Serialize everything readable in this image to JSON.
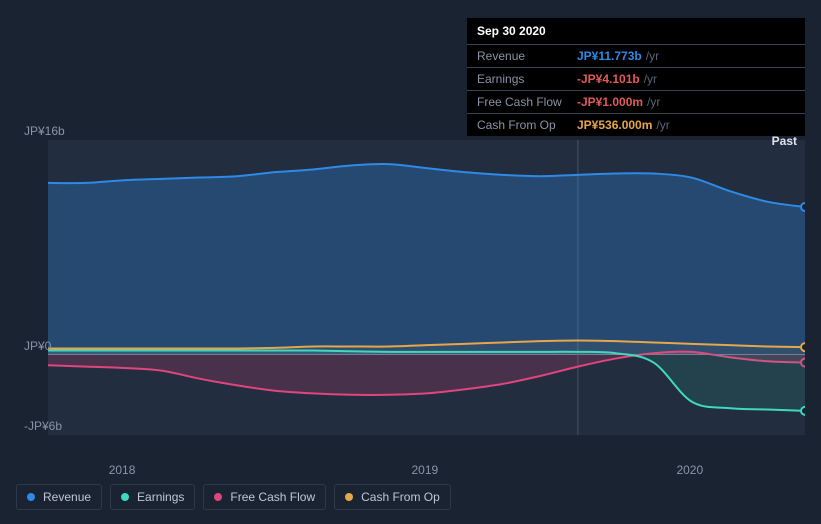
{
  "chart": {
    "type": "area",
    "background_color": "#1a2332",
    "plot_background": "#222d3f",
    "grid_color": "#3a4454",
    "past_label": "Past",
    "y_axis": {
      "ticks": [
        {
          "label": "JP¥16b",
          "value": 16
        },
        {
          "label": "JP¥0",
          "value": 0
        },
        {
          "label": "-JP¥6b",
          "value": -6
        }
      ],
      "min": -6,
      "max": 16,
      "label_color": "#8a94a6",
      "label_fontsize": 12
    },
    "x_axis": {
      "ticks": [
        "2018",
        "2019",
        "2020"
      ],
      "label_color": "#8a94a6",
      "label_fontsize": 12
    },
    "series": {
      "revenue": {
        "label": "Revenue",
        "color": "#2e8ae6",
        "fill": "rgba(46,138,230,0.30)",
        "values": [
          12.8,
          12.8,
          13.0,
          13.1,
          13.2,
          13.3,
          13.6,
          13.8,
          14.1,
          14.2,
          13.9,
          13.6,
          13.4,
          13.3,
          13.4,
          13.5,
          13.5,
          13.2,
          12.2,
          11.4,
          11.0
        ]
      },
      "earnings": {
        "label": "Earnings",
        "color": "#3dd9c1",
        "fill": "rgba(61,217,193,0.12)",
        "values": [
          0.3,
          0.3,
          0.3,
          0.3,
          0.3,
          0.3,
          0.3,
          0.3,
          0.25,
          0.2,
          0.2,
          0.2,
          0.2,
          0.2,
          0.2,
          0.1,
          -0.6,
          -3.5,
          -4.0,
          -4.1,
          -4.2
        ]
      },
      "fcf": {
        "label": "Free Cash Flow",
        "color": "#e0457e",
        "fill": "rgba(224,69,126,0.20)",
        "values": [
          -0.8,
          -0.9,
          -1.0,
          -1.2,
          -1.8,
          -2.3,
          -2.7,
          -2.9,
          -3.0,
          -3.0,
          -2.9,
          -2.6,
          -2.2,
          -1.6,
          -0.9,
          -0.3,
          0.1,
          0.2,
          -0.2,
          -0.5,
          -0.6
        ]
      },
      "cfo": {
        "label": "Cash From Op",
        "color": "#e6a64b",
        "fill": "rgba(230,166,75,0.06)",
        "values": [
          0.45,
          0.45,
          0.45,
          0.45,
          0.45,
          0.45,
          0.5,
          0.6,
          0.6,
          0.6,
          0.7,
          0.8,
          0.9,
          1.0,
          1.05,
          1.0,
          0.9,
          0.8,
          0.7,
          0.6,
          0.55
        ]
      }
    },
    "vertical_marker_index": 14,
    "end_marker_radius": 4
  },
  "tooltip": {
    "date": "Sep 30 2020",
    "unit": "/yr",
    "rows": [
      {
        "label": "Revenue",
        "value": "JP¥11.773b",
        "color": "#2e8ae6"
      },
      {
        "label": "Earnings",
        "value": "-JP¥4.101b",
        "color": "#e05a5a"
      },
      {
        "label": "Free Cash Flow",
        "value": "-JP¥1.000m",
        "color": "#e05a5a"
      },
      {
        "label": "Cash From Op",
        "value": "JP¥536.000m",
        "color": "#e6a64b"
      }
    ]
  },
  "legend": {
    "border_color": "#2f3948",
    "text_color": "#c0c8d4",
    "items": [
      {
        "key": "revenue",
        "label": "Revenue",
        "color": "#2e8ae6"
      },
      {
        "key": "earnings",
        "label": "Earnings",
        "color": "#3dd9c1"
      },
      {
        "key": "fcf",
        "label": "Free Cash Flow",
        "color": "#e0457e"
      },
      {
        "key": "cfo",
        "label": "Cash From Op",
        "color": "#e6a64b"
      }
    ]
  }
}
